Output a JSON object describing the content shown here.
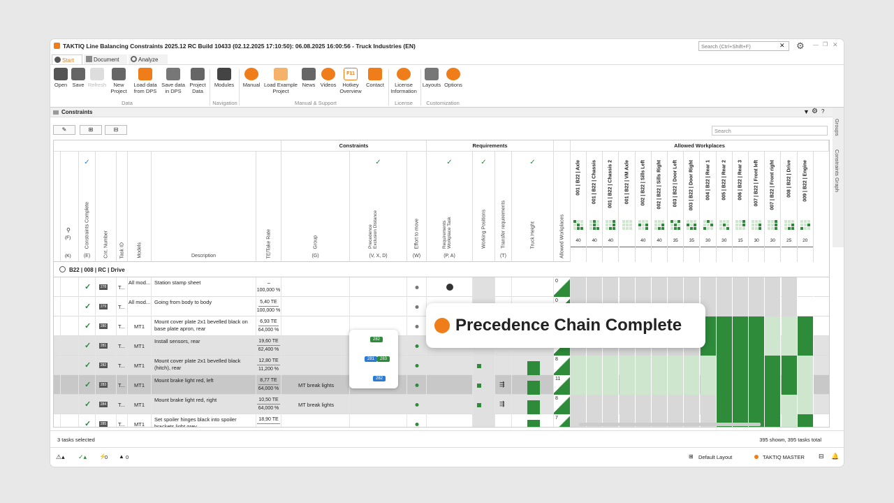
{
  "window": {
    "title": "TAKTIQ Line Balancing Constraints 2025.12 RC Build 10433 (02.12.2025 17:10:50): 06.08.2025 16:00:56 - Truck Industries (EN)",
    "search_placeholder": "Search (Ctrl+Shift+F)"
  },
  "tabs": [
    {
      "label": "Start"
    },
    {
      "label": "Document"
    },
    {
      "label": "Analyze"
    }
  ],
  "ribbon": {
    "buttons": [
      {
        "label": "Open"
      },
      {
        "label": "Save"
      },
      {
        "label": "Refresh"
      },
      {
        "label": "New Project"
      },
      {
        "label": "Load data from DPS"
      },
      {
        "label": "Save data in DPS"
      },
      {
        "label": "Project Data"
      },
      {
        "label": "Modules"
      },
      {
        "label": "Manual"
      },
      {
        "label": "Load Example Project"
      },
      {
        "label": "News"
      },
      {
        "label": "Videos"
      },
      {
        "label": "Hotkey Overview"
      },
      {
        "label": "Contact"
      },
      {
        "label": "License Information"
      },
      {
        "label": "Layouts"
      },
      {
        "label": "Options"
      }
    ],
    "groups": [
      "Data",
      "Navigation",
      "Manual & Support",
      "License",
      "Customization"
    ],
    "f11": "F11",
    "tkq": "TKQ"
  },
  "panel": {
    "title": "Constraints",
    "side_tabs": [
      "Groups",
      "Constraints Graph"
    ],
    "search_placeholder": "Search"
  },
  "grid": {
    "group_headers": {
      "constraints": "Constraints",
      "requirements": "Requirements",
      "workplaces": "Allowed Workplaces"
    },
    "columns": {
      "constraints_complete": "Constraints Complete",
      "cnt_number": "Cnt. Number",
      "task_id": "Task ID",
      "models": "Models",
      "description": "Description",
      "te_rate": "TE/Take Rate",
      "group": "Group",
      "precedence": "Precedence Exclusion Distance",
      "effort": "Effort to move",
      "req_wp_task": "Requirements Workplace Task",
      "working_positions": "Working Positions",
      "transfer": "Transfer requirements",
      "truck_height": "Truck Height",
      "allowed_wp": "Allowed Workplaces"
    },
    "col_keys": {
      "f": "(F)",
      "k": "(K)",
      "e": "(E)",
      "g": "(G)",
      "vxd": "(V, X, D)",
      "w": "(W)",
      "pa": "(P, A)",
      "t": "(T)"
    },
    "checkmark": "✓",
    "workplaces": [
      {
        "name": "001 | B22 | Axle",
        "tt": "40"
      },
      {
        "name": "001 | B22 | Chassis",
        "tt": "40"
      },
      {
        "name": "001 | B22 | Chassis 2",
        "tt": "40"
      },
      {
        "name": "001 | B22 | VM Axle",
        "tt": ""
      },
      {
        "name": "002 | B22 | Sills Left",
        "tt": "40"
      },
      {
        "name": "002 | B22 | Sills Right",
        "tt": "40"
      },
      {
        "name": "003 | B22 | Door Left",
        "tt": "35"
      },
      {
        "name": "003 | B22 | Door Right",
        "tt": "35"
      },
      {
        "name": "004 | B22 | Rear 1",
        "tt": "30"
      },
      {
        "name": "005 | B22 | Rear 2",
        "tt": "30"
      },
      {
        "name": "006 | B22 | Rear 3",
        "tt": "15"
      },
      {
        "name": "007 | B22 | Front left",
        "tt": "30"
      },
      {
        "name": "007 | B22 | Front right",
        "tt": "30"
      },
      {
        "name": "008 | B22 | Drive",
        "tt": "25"
      },
      {
        "name": "009 | B22 | Engine",
        "tt": "20"
      }
    ],
    "group_row": "B22 | 008 | RC | Drive",
    "rows": [
      {
        "cnt": "278",
        "tid": "T...",
        "models": "All mod...",
        "desc": "Station stamp sheet",
        "te": "",
        "rate": "100,000 %",
        "group": "",
        "wp": "0"
      },
      {
        "cnt": "279",
        "tid": "T...",
        "models": "All mod...",
        "desc": "Going from body to body",
        "te": "5,40 TE",
        "rate": "100,000 %",
        "group": "",
        "wp": "0"
      },
      {
        "cnt": "280",
        "tid": "T...",
        "models": "MT1",
        "desc": "Mount cover plate 2x1 bevelled black on base plate apron, rear",
        "te": "6,93 TE",
        "rate": "64,000 %",
        "group": "",
        "wp": ""
      },
      {
        "cnt": "281",
        "tid": "T...",
        "models": "MT1",
        "desc": "Install sensors, rear",
        "te": "19,60 TE",
        "rate": "62,400 %",
        "group": "",
        "wp": ""
      },
      {
        "cnt": "282",
        "tid": "T...",
        "models": "MT1",
        "desc": "Mount cover plate 2x1 bevelled black (hitch), rear",
        "te": "12,80 TE",
        "rate": "11,200 %",
        "group": "",
        "wp": "8"
      },
      {
        "cnt": "283",
        "tid": "T...",
        "models": "MT1",
        "desc": "Mount brake light red, left",
        "te": "8,77 TE",
        "rate": "64,000 %",
        "group": "MT break lights",
        "wp": "11"
      },
      {
        "cnt": "284",
        "tid": "T...",
        "models": "MT1",
        "desc": "Mount brake light red, right",
        "te": "10,50 TE",
        "rate": "64,000 %",
        "group": "MT break lights",
        "wp": "8"
      },
      {
        "cnt": "285",
        "tid": "T...",
        "models": "MT1",
        "desc": "Set spoiler hinges black into spoiler brackets light grey",
        "te": "18,90 TE",
        "rate": "",
        "group": "",
        "wp": "7"
      }
    ],
    "precedence_tags": {
      "r281": "282",
      "r282a": "281",
      "r282b": "283",
      "r283": "282"
    },
    "truck_height": {
      "r282": "50",
      "r283": "50",
      "r284": "50",
      "r285": "30",
      "r282b": "15",
      "r284b": "15",
      "r283b": "4",
      "r282c": "1",
      "r284c": "4"
    }
  },
  "popup": {
    "text": "Precedence Chain Complete"
  },
  "status": {
    "selected": "3 tasks selected",
    "shown": "395 shown, 395 tasks total"
  },
  "footer": {
    "warn_count": "0",
    "warn2_count": "0",
    "layout": "Default Layout",
    "user": "TAKTIQ MASTER"
  }
}
